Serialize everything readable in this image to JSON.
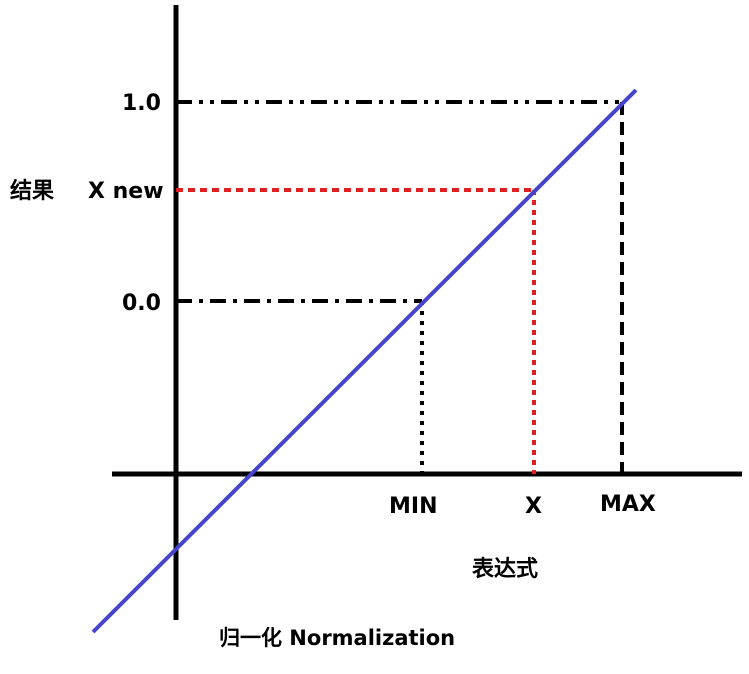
{
  "diagram": {
    "title": "归一化 Normalization",
    "y_axis_title": "结果",
    "x_axis_title": "表达式",
    "y_labels": {
      "top": "1.0",
      "mid": "X new",
      "zero": "0.0"
    },
    "x_labels": {
      "min": "MIN",
      "x": "X",
      "max": "MAX"
    },
    "colors": {
      "line": "#4444cc",
      "axis": "#000000",
      "guide": "#000000",
      "highlight": "#e02020"
    }
  }
}
